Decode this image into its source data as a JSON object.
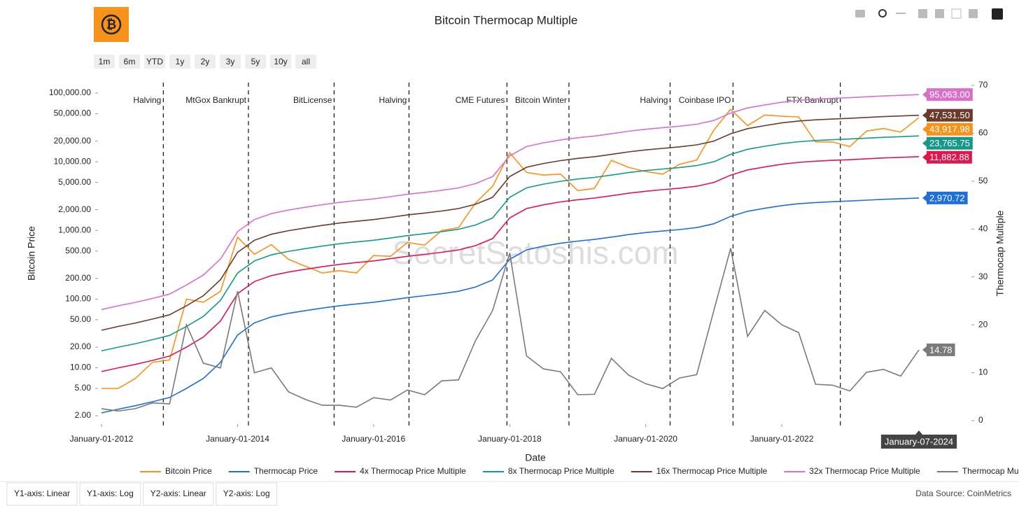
{
  "chart_data": {
    "type": "line",
    "title": "Bitcoin Thermocap Multiple",
    "xlabel": "Date",
    "ylabel": "Bitcoin Price",
    "y2label": "Thermocap Multiple",
    "yscale": "log",
    "xlim": [
      "2012-01-01",
      "2024-01-07"
    ],
    "xticks": [
      {
        "value": "2012-01-01",
        "label": "January-01-2012"
      },
      {
        "value": "2014-01-01",
        "label": "January-01-2014"
      },
      {
        "value": "2016-01-01",
        "label": "January-01-2016"
      },
      {
        "value": "2018-01-01",
        "label": "January-01-2018"
      },
      {
        "value": "2020-01-01",
        "label": "January-01-2020"
      },
      {
        "value": "2022-01-01",
        "label": "January-01-2022"
      }
    ],
    "ylim": [
      1.7,
      129500
    ],
    "yticks": [
      {
        "value": 100000,
        "label": "100,000.00"
      },
      {
        "value": 50000,
        "label": "50,000.00"
      },
      {
        "value": 20000,
        "label": "20,000.00"
      },
      {
        "value": 10000,
        "label": "10,000.00"
      },
      {
        "value": 5000,
        "label": "5,000.00"
      },
      {
        "value": 2000,
        "label": "2,000.00"
      },
      {
        "value": 1000,
        "label": "1,000.00"
      },
      {
        "value": 500,
        "label": "500.00"
      },
      {
        "value": 200,
        "label": "200.00"
      },
      {
        "value": 100,
        "label": "100.00"
      },
      {
        "value": 50,
        "label": "50.00"
      },
      {
        "value": 20,
        "label": "20.00"
      },
      {
        "value": 10,
        "label": "10.00"
      },
      {
        "value": 5,
        "label": "5.00"
      },
      {
        "value": 2,
        "label": "2.00"
      }
    ],
    "y2lim": [
      0,
      70
    ],
    "y2ticks": [
      0,
      10,
      20,
      30,
      40,
      50,
      60,
      70
    ],
    "x": [
      "2012-01-01",
      "2012-04-01",
      "2012-07-01",
      "2012-10-01",
      "2013-01-01",
      "2013-04-01",
      "2013-07-01",
      "2013-10-01",
      "2014-01-01",
      "2014-04-01",
      "2014-07-01",
      "2014-10-01",
      "2015-01-01",
      "2015-04-01",
      "2015-07-01",
      "2015-10-01",
      "2016-01-01",
      "2016-04-01",
      "2016-07-01",
      "2016-10-01",
      "2017-01-01",
      "2017-04-01",
      "2017-07-01",
      "2017-10-01",
      "2018-01-01",
      "2018-04-01",
      "2018-07-01",
      "2018-10-01",
      "2019-01-01",
      "2019-04-01",
      "2019-07-01",
      "2019-10-01",
      "2020-01-01",
      "2020-04-01",
      "2020-07-01",
      "2020-10-01",
      "2021-01-01",
      "2021-04-01",
      "2021-07-01",
      "2021-10-01",
      "2022-01-01",
      "2022-04-01",
      "2022-07-01",
      "2022-10-01",
      "2023-01-01",
      "2023-04-01",
      "2023-07-01",
      "2023-10-01",
      "2024-01-07"
    ],
    "series": [
      {
        "name": "Bitcoin Price",
        "color": "#f7931a",
        "values": [
          5,
          5,
          7,
          12,
          13,
          100,
          90,
          130,
          800,
          450,
          620,
          380,
          300,
          240,
          260,
          240,
          430,
          420,
          670,
          610,
          1000,
          1100,
          2500,
          4400,
          13500,
          7000,
          6400,
          6600,
          3800,
          4100,
          10500,
          8300,
          7200,
          6600,
          9200,
          10600,
          29000,
          58000,
          33500,
          48000,
          46000,
          45000,
          19500,
          19400,
          16600,
          28000,
          30500,
          27000,
          43917.98
        ],
        "value_labels": [
          null,
          null,
          null,
          null,
          null,
          null,
          null,
          null,
          null,
          null,
          null,
          null,
          null,
          null,
          null,
          null,
          null,
          null,
          null,
          null,
          null,
          null,
          null,
          null,
          null,
          null,
          null,
          null,
          null,
          null,
          null,
          null,
          null,
          null,
          null,
          null,
          null,
          null,
          null,
          null,
          null,
          null,
          null,
          null,
          null,
          null,
          null,
          null,
          "43,917.98"
        ]
      },
      {
        "name": "Thermocap Price",
        "color": "#1f6fd6",
        "values": [
          2.2,
          2.5,
          2.8,
          3.2,
          3.7,
          5,
          7,
          12,
          30,
          45,
          55,
          62,
          68,
          74,
          80,
          85,
          90,
          97,
          105,
          112,
          120,
          130,
          150,
          190,
          380,
          520,
          590,
          650,
          700,
          740,
          800,
          870,
          930,
          980,
          1030,
          1100,
          1250,
          1600,
          1900,
          2100,
          2300,
          2450,
          2550,
          2620,
          2680,
          2760,
          2840,
          2900,
          2970.72
        ],
        "value_labels": [
          null,
          null,
          null,
          null,
          null,
          null,
          null,
          null,
          null,
          null,
          null,
          null,
          null,
          null,
          null,
          null,
          null,
          null,
          null,
          null,
          null,
          null,
          null,
          null,
          null,
          null,
          null,
          null,
          null,
          null,
          null,
          null,
          null,
          null,
          null,
          null,
          null,
          null,
          null,
          null,
          null,
          null,
          null,
          null,
          null,
          null,
          null,
          null,
          "2,970.72"
        ]
      },
      {
        "name": "4x Thermocap Price Multiple",
        "color": "#e0174f",
        "values": [
          8.8,
          10,
          11.2,
          12.8,
          14.8,
          20,
          28,
          48,
          120,
          180,
          220,
          248,
          272,
          296,
          320,
          340,
          360,
          388,
          420,
          448,
          480,
          520,
          600,
          760,
          1520,
          2080,
          2360,
          2600,
          2800,
          2960,
          3200,
          3480,
          3720,
          3920,
          4120,
          4400,
          5000,
          6400,
          7600,
          8400,
          9200,
          9800,
          10200,
          10480,
          10720,
          11040,
          11360,
          11600,
          11882.88
        ],
        "value_labels": [
          null,
          null,
          null,
          null,
          null,
          null,
          null,
          null,
          null,
          null,
          null,
          null,
          null,
          null,
          null,
          null,
          null,
          null,
          null,
          null,
          null,
          null,
          null,
          null,
          null,
          null,
          null,
          null,
          null,
          null,
          null,
          null,
          null,
          null,
          null,
          null,
          null,
          null,
          null,
          null,
          null,
          null,
          null,
          null,
          null,
          null,
          null,
          null,
          "11,882.88"
        ]
      },
      {
        "name": "8x Thermocap Price Multiple",
        "color": "#16998a",
        "values": [
          17.6,
          20,
          22.4,
          25.6,
          29.6,
          40,
          56,
          96,
          240,
          360,
          440,
          496,
          544,
          592,
          640,
          680,
          720,
          776,
          840,
          896,
          960,
          1040,
          1200,
          1520,
          3040,
          4160,
          4720,
          5200,
          5600,
          5920,
          6400,
          6960,
          7440,
          7840,
          8240,
          8800,
          10000,
          12800,
          15200,
          16800,
          18400,
          19600,
          20400,
          20960,
          21440,
          22080,
          22720,
          23200,
          23765.75
        ],
        "value_labels": [
          null,
          null,
          null,
          null,
          null,
          null,
          null,
          null,
          null,
          null,
          null,
          null,
          null,
          null,
          null,
          null,
          null,
          null,
          null,
          null,
          null,
          null,
          null,
          null,
          null,
          null,
          null,
          null,
          null,
          null,
          null,
          null,
          null,
          null,
          null,
          null,
          null,
          null,
          null,
          null,
          null,
          null,
          null,
          null,
          null,
          null,
          null,
          null,
          "23,765.75"
        ]
      },
      {
        "name": "16x Thermocap Price Multiple",
        "color": "#6b3a2a",
        "values": [
          35.2,
          40,
          44.8,
          51.2,
          59.2,
          80,
          112,
          192,
          480,
          720,
          880,
          992,
          1088,
          1184,
          1280,
          1360,
          1440,
          1552,
          1680,
          1792,
          1920,
          2080,
          2400,
          3040,
          6080,
          8320,
          9440,
          10400,
          11200,
          11840,
          12800,
          13920,
          14880,
          15680,
          16480,
          17600,
          20000,
          25600,
          30400,
          33600,
          36800,
          39200,
          40800,
          41920,
          42880,
          44160,
          45440,
          46400,
          47531.5
        ],
        "value_labels": [
          null,
          null,
          null,
          null,
          null,
          null,
          null,
          null,
          null,
          null,
          null,
          null,
          null,
          null,
          null,
          null,
          null,
          null,
          null,
          null,
          null,
          null,
          null,
          null,
          null,
          null,
          null,
          null,
          null,
          null,
          null,
          null,
          null,
          null,
          null,
          null,
          null,
          null,
          null,
          null,
          null,
          null,
          null,
          null,
          null,
          null,
          null,
          null,
          "47,531.50"
        ]
      },
      {
        "name": "32x Thermocap Price Multiple",
        "color": "#d870c8",
        "values": [
          70.4,
          80,
          89.6,
          102.4,
          118.4,
          160,
          224,
          384,
          960,
          1440,
          1760,
          1984,
          2176,
          2368,
          2560,
          2720,
          2880,
          3104,
          3360,
          3584,
          3840,
          4160,
          4800,
          6080,
          12160,
          16640,
          18880,
          20800,
          22400,
          23680,
          25600,
          27840,
          29760,
          31360,
          32960,
          35200,
          40000,
          51200,
          60800,
          67200,
          73600,
          78400,
          81600,
          83840,
          85760,
          88320,
          90880,
          92800,
          95063
        ],
        "value_labels": [
          null,
          null,
          null,
          null,
          null,
          null,
          null,
          null,
          null,
          null,
          null,
          null,
          null,
          null,
          null,
          null,
          null,
          null,
          null,
          null,
          null,
          null,
          null,
          null,
          null,
          null,
          null,
          null,
          null,
          null,
          null,
          null,
          null,
          null,
          null,
          null,
          null,
          null,
          null,
          null,
          null,
          null,
          null,
          null,
          null,
          null,
          null,
          null,
          "95,063.00"
        ]
      },
      {
        "name": "Thermocap Multiple",
        "color": "#7a7a7a",
        "axis": "y2",
        "values": [
          2.5,
          2,
          2.5,
          3.7,
          3.5,
          20,
          12,
          11,
          27,
          10,
          11,
          6,
          4.4,
          3.2,
          3.2,
          2.8,
          4.8,
          4.3,
          6.4,
          5.4,
          8.3,
          8.5,
          16.7,
          23,
          35,
          13.5,
          10.8,
          10.2,
          5.4,
          5.5,
          13,
          9.5,
          7.7,
          6.7,
          8.9,
          9.6,
          23,
          36,
          17.6,
          23,
          20,
          18.4,
          7.6,
          7.4,
          6.2,
          10.1,
          10.7,
          9.3,
          14.78
        ],
        "value_labels": [
          null,
          null,
          null,
          null,
          null,
          null,
          null,
          null,
          null,
          null,
          null,
          null,
          null,
          null,
          null,
          null,
          null,
          null,
          null,
          null,
          null,
          null,
          null,
          null,
          null,
          null,
          null,
          null,
          null,
          null,
          null,
          null,
          null,
          null,
          null,
          null,
          null,
          null,
          null,
          null,
          null,
          null,
          null,
          null,
          null,
          null,
          null,
          null,
          "14.78"
        ]
      }
    ],
    "annotations": [
      {
        "x": "2012-11-28",
        "label": "Halving"
      },
      {
        "x": "2014-02-28",
        "label": "MtGox Bankrupt"
      },
      {
        "x": "2015-06-03",
        "label": "BitLicense"
      },
      {
        "x": "2016-07-09",
        "label": "Halving"
      },
      {
        "x": "2017-12-17",
        "label": "CME Futures"
      },
      {
        "x": "2018-11-15",
        "label": "Bitcoin Winter"
      },
      {
        "x": "2020-05-11",
        "label": "Halving"
      },
      {
        "x": "2021-04-14",
        "label": "Coinbase IPO"
      },
      {
        "x": "2022-11-11",
        "label": "FTX Bankrupt"
      }
    ],
    "hover_label": "January-07-2024",
    "watermark": "SecretSatoshis.com",
    "range_buttons": [
      "1m",
      "6m",
      "YTD",
      "1y",
      "2y",
      "3y",
      "5y",
      "10y",
      "all"
    ],
    "axis_buttons": [
      "Y1-axis: Linear",
      "Y1-axis: Log",
      "Y2-axis: Linear",
      "Y2-axis: Log"
    ],
    "source": "Data Source: CoinMetrics"
  }
}
